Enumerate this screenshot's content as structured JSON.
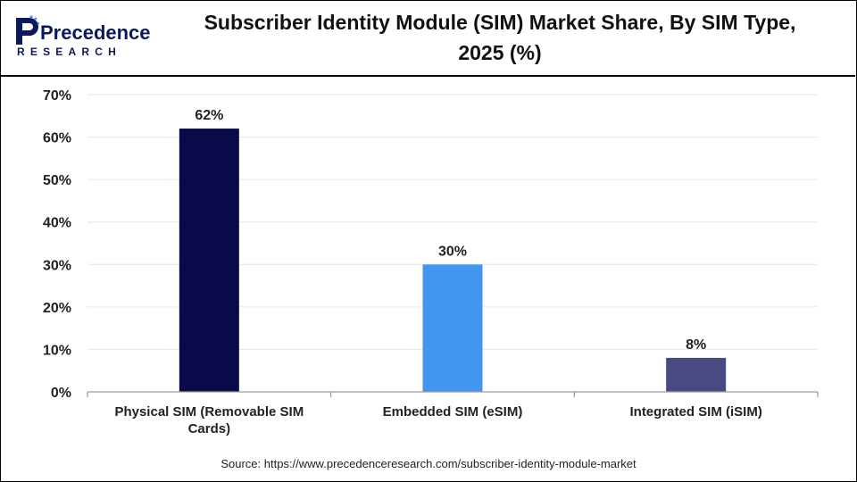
{
  "logo": {
    "text_main": "Precedence",
    "text_sub": "RESEARCH"
  },
  "title": "Subscriber Identity Module (SIM) Market Share, By SIM Type, 2025 (%)",
  "source": "Source: https://www.precedenceresearch.com/subscriber-identity-module-market",
  "chart_data": {
    "type": "bar",
    "categories": [
      "Physical SIM (Removable SIM Cards)",
      "Embedded SIM (eSIM)",
      "Integrated SIM (iSIM)"
    ],
    "category_lines": [
      [
        "Physical SIM (Removable SIM",
        "Cards)"
      ],
      [
        "Embedded SIM (eSIM)"
      ],
      [
        "Integrated SIM (iSIM)"
      ]
    ],
    "values": [
      62,
      30,
      8
    ],
    "data_labels": [
      "62%",
      "30%",
      "8%"
    ],
    "colors": [
      "#0a0a4a",
      "#4396f0",
      "#4a4a82"
    ],
    "ylim": [
      0,
      70
    ],
    "yticks": [
      0,
      10,
      20,
      30,
      40,
      50,
      60,
      70
    ],
    "ytick_labels": [
      "0%",
      "10%",
      "20%",
      "30%",
      "40%",
      "50%",
      "60%",
      "70%"
    ],
    "grid": true,
    "xlabel": "",
    "ylabel": ""
  }
}
